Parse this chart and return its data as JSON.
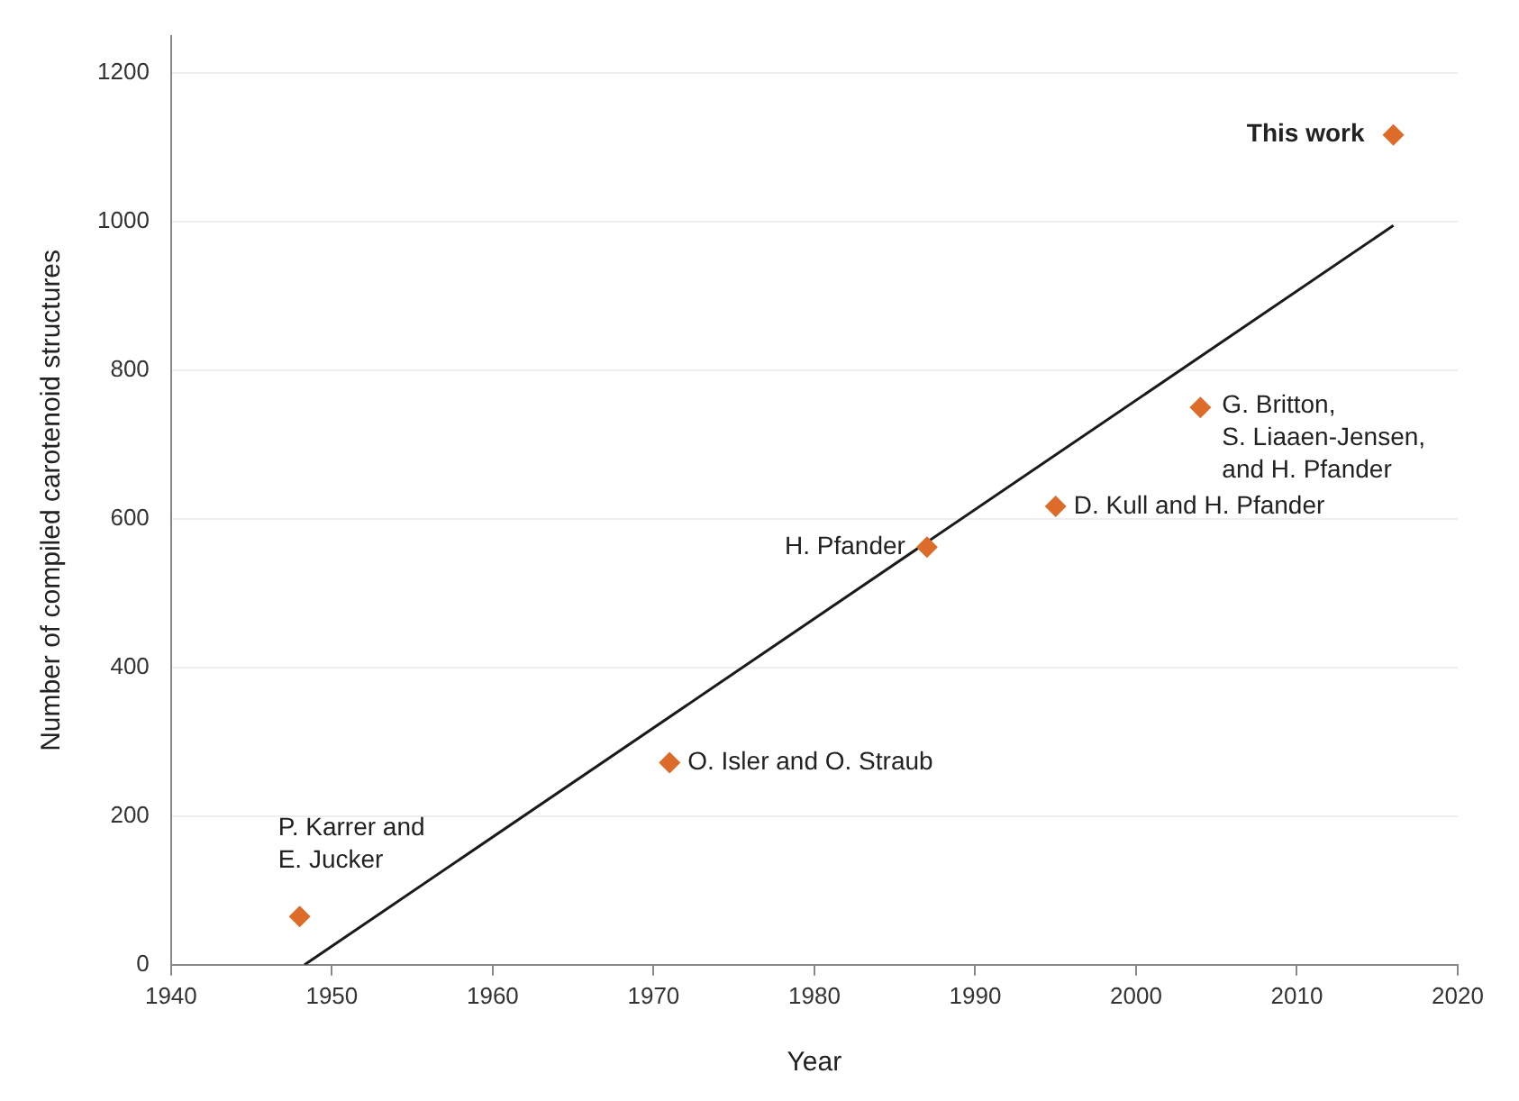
{
  "chart_data": {
    "type": "scatter",
    "xlabel": "Year",
    "ylabel": "Number of compiled carotenoid structures",
    "series": [
      {
        "type": "line",
        "color": "#1a1a1a",
        "marker": "none",
        "line_style": "solid",
        "x": [
          1948.3,
          2016
        ],
        "values": [
          0,
          995
        ]
      },
      {
        "type": "scatter",
        "color": "#dd6b2a",
        "marker": "diamond",
        "x": [
          1948,
          1971,
          1987,
          1995,
          2004,
          2016
        ],
        "values": [
          65,
          272,
          562,
          617,
          750,
          1117
        ]
      }
    ],
    "xlim": [
      1940,
      2020
    ],
    "xticks": [
      1940,
      1950,
      1960,
      1970,
      1980,
      1990,
      2000,
      2010,
      2020
    ],
    "ylim": [
      0,
      1250
    ],
    "yticks": [
      0,
      200,
      400,
      600,
      800,
      1000,
      1200
    ],
    "grid": "y",
    "legend": false,
    "annotations": [
      {
        "text": "P. Karrer and\nE. Jucker",
        "x": 1948,
        "y": 65
      },
      {
        "text": "O. Isler and O. Straub",
        "x": 1971,
        "y": 272
      },
      {
        "text": "H. Pfander",
        "x": 1987,
        "y": 562
      },
      {
        "text": "D. Kull and H. Pfander",
        "x": 1995,
        "y": 617
      },
      {
        "text": "G. Britton,\nS. Liaaen-Jensen,\nand H. Pfander",
        "x": 2004,
        "y": 750
      },
      {
        "text": "This work",
        "x": 2016,
        "y": 1117
      }
    ]
  }
}
